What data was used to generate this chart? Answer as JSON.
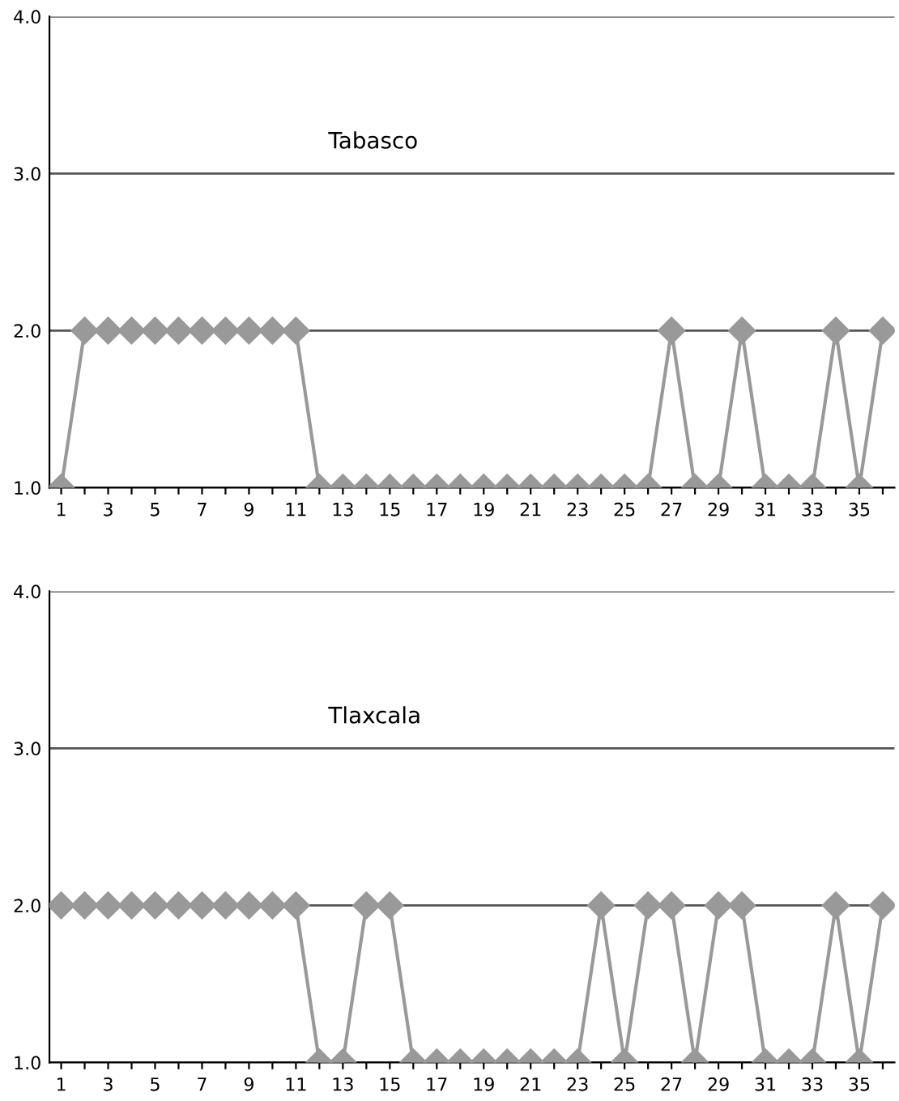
{
  "chart_data": [
    {
      "type": "line",
      "title": "Tabasco",
      "x": [
        1,
        2,
        3,
        4,
        5,
        6,
        7,
        8,
        9,
        10,
        11,
        12,
        13,
        14,
        15,
        16,
        17,
        18,
        19,
        20,
        21,
        22,
        23,
        24,
        25,
        26,
        27,
        28,
        29,
        30,
        31,
        32,
        33,
        34,
        35,
        36
      ],
      "series": [
        {
          "color": "#999999",
          "values": [
            1,
            2,
            2,
            2,
            2,
            2,
            2,
            2,
            2,
            2,
            2,
            1,
            1,
            1,
            1,
            1,
            1,
            1,
            1,
            1,
            1,
            1,
            1,
            1,
            1,
            1,
            2,
            1,
            1,
            2,
            1,
            1,
            1,
            2,
            1,
            2
          ]
        }
      ],
      "xlim": [
        0.5,
        36.5
      ],
      "xticks": [
        1,
        {
          "value": 2,
          "label": null
        },
        3,
        {
          "value": 4,
          "label": null
        },
        5,
        {
          "value": 6,
          "label": null
        },
        7,
        {
          "value": 8,
          "label": null
        },
        9,
        {
          "value": 10,
          "label": null
        },
        11,
        {
          "value": 12,
          "label": null
        },
        13,
        {
          "value": 14,
          "label": null
        },
        15,
        {
          "value": 16,
          "label": null
        },
        17,
        {
          "value": 18,
          "label": null
        },
        19,
        {
          "value": 20,
          "label": null
        },
        21,
        {
          "value": 22,
          "label": null
        },
        23,
        {
          "value": 24,
          "label": null
        },
        25,
        {
          "value": 26,
          "label": null
        },
        27,
        {
          "value": 28,
          "label": null
        },
        29,
        {
          "value": 30,
          "label": null
        },
        31,
        {
          "value": 32,
          "label": null
        },
        33,
        {
          "value": 34,
          "label": null
        },
        35,
        {
          "value": 36,
          "label": null
        }
      ],
      "ylim": [
        1,
        4
      ],
      "yticks": [
        {
          "value": 1,
          "label": "1.0"
        },
        {
          "value": 2,
          "label": "2.0"
        },
        {
          "value": 3,
          "label": "3.0"
        },
        {
          "value": 4,
          "label": "4.0"
        }
      ],
      "grid": "y",
      "marker": "diamond",
      "line_style": "solid"
    },
    {
      "type": "line",
      "title": "Tlaxcala",
      "x": [
        1,
        2,
        3,
        4,
        5,
        6,
        7,
        8,
        9,
        10,
        11,
        12,
        13,
        14,
        15,
        16,
        17,
        18,
        19,
        20,
        21,
        22,
        23,
        24,
        25,
        26,
        27,
        28,
        29,
        30,
        31,
        32,
        33,
        34,
        35,
        36
      ],
      "series": [
        {
          "color": "#999999",
          "values": [
            2,
            2,
            2,
            2,
            2,
            2,
            2,
            2,
            2,
            2,
            2,
            1,
            1,
            2,
            2,
            1,
            1,
            1,
            1,
            1,
            1,
            1,
            1,
            2,
            1,
            2,
            2,
            1,
            2,
            2,
            1,
            1,
            1,
            2,
            1,
            2
          ]
        }
      ],
      "xlim": [
        0.5,
        36.5
      ],
      "xticks": [
        1,
        {
          "value": 2,
          "label": null
        },
        3,
        {
          "value": 4,
          "label": null
        },
        5,
        {
          "value": 6,
          "label": null
        },
        7,
        {
          "value": 8,
          "label": null
        },
        9,
        {
          "value": 10,
          "label": null
        },
        11,
        {
          "value": 12,
          "label": null
        },
        13,
        {
          "value": 14,
          "label": null
        },
        15,
        {
          "value": 16,
          "label": null
        },
        17,
        {
          "value": 18,
          "label": null
        },
        19,
        {
          "value": 20,
          "label": null
        },
        21,
        {
          "value": 22,
          "label": null
        },
        23,
        {
          "value": 24,
          "label": null
        },
        25,
        {
          "value": 26,
          "label": null
        },
        27,
        {
          "value": 28,
          "label": null
        },
        29,
        {
          "value": 30,
          "label": null
        },
        31,
        {
          "value": 32,
          "label": null
        },
        33,
        {
          "value": 34,
          "label": null
        },
        35,
        {
          "value": 36,
          "label": null
        }
      ],
      "ylim": [
        1,
        4
      ],
      "yticks": [
        {
          "value": 1,
          "label": "1.0"
        },
        {
          "value": 2,
          "label": "2.0"
        },
        {
          "value": 3,
          "label": "3.0"
        },
        {
          "value": 4,
          "label": "4.0"
        }
      ],
      "grid": "y",
      "marker": "diamond",
      "line_style": "solid"
    }
  ]
}
